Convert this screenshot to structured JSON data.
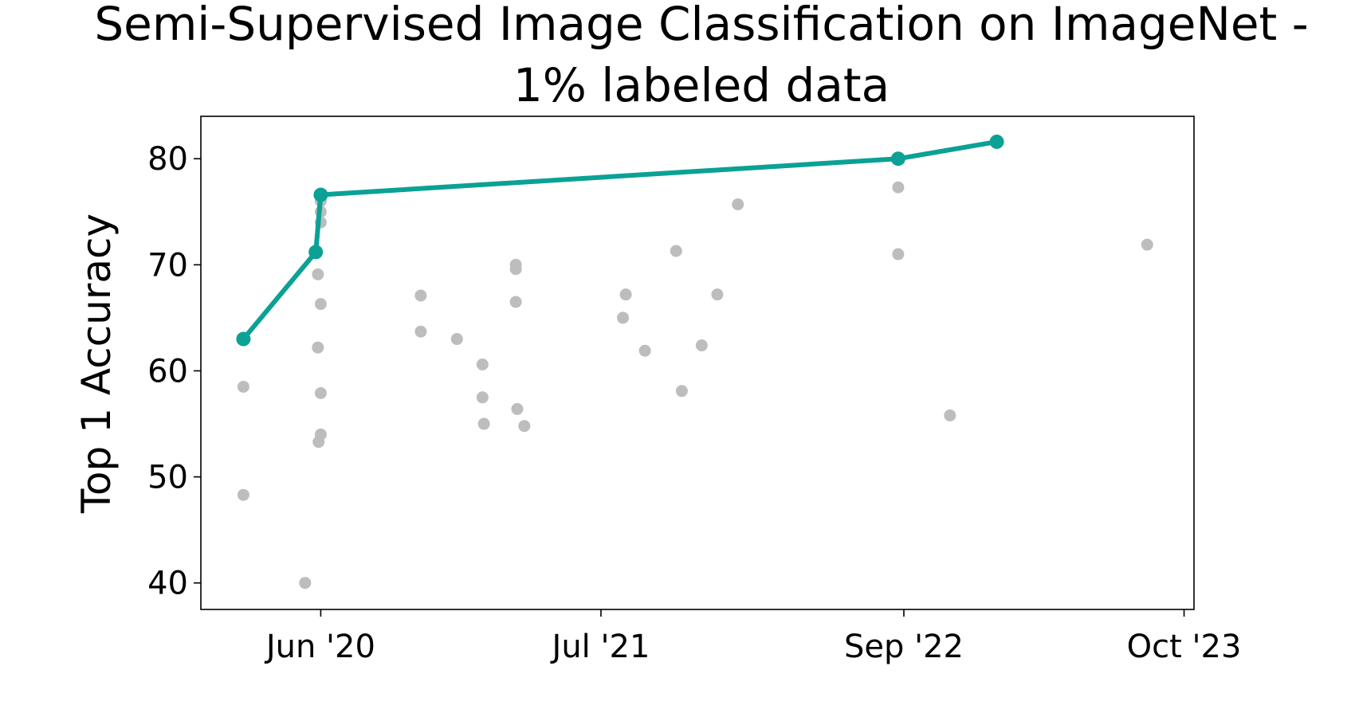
{
  "chart_data": {
    "type": "scatter",
    "title_lines": [
      "Semi-Supervised Image Classification on ImageNet -",
      "1% labeled data"
    ],
    "xlabel": "",
    "ylabel": "Top 1 Accuracy",
    "x_tick_labels": [
      "Jun '20",
      "Jul '21",
      "Sep '22",
      "Oct '23"
    ],
    "x_tick_dates": [
      "2020-06-01",
      "2021-07-01",
      "2022-09-01",
      "2023-10-01"
    ],
    "xlim": [
      "2019-12-15",
      "2023-10-15"
    ],
    "ylim": [
      37.5,
      84
    ],
    "y_ticks": [
      40,
      50,
      60,
      70,
      80
    ],
    "grid": false,
    "legend": "none",
    "colors": {
      "sota": "#0ba195",
      "other": "#bdbdbd"
    },
    "sota_series": {
      "points": [
        {
          "date": "2020-02-13",
          "value": 63.0
        },
        {
          "date": "2020-05-25",
          "value": 71.2
        },
        {
          "date": "2020-06-01",
          "value": 76.6
        },
        {
          "date": "2022-08-24",
          "value": 80.0
        },
        {
          "date": "2023-01-10",
          "value": 81.6
        }
      ]
    },
    "other_points": [
      {
        "date": "2020-02-13",
        "value": 58.5
      },
      {
        "date": "2020-02-13",
        "value": 48.3
      },
      {
        "date": "2020-05-10",
        "value": 40.0
      },
      {
        "date": "2020-05-28",
        "value": 69.1
      },
      {
        "date": "2020-06-01",
        "value": 66.3
      },
      {
        "date": "2020-05-28",
        "value": 62.2
      },
      {
        "date": "2020-06-01",
        "value": 57.9
      },
      {
        "date": "2020-06-01",
        "value": 54.0
      },
      {
        "date": "2020-05-29",
        "value": 53.3
      },
      {
        "date": "2020-06-01",
        "value": 74.0
      },
      {
        "date": "2020-06-01",
        "value": 75.0
      },
      {
        "date": "2020-06-01",
        "value": 76.0
      },
      {
        "date": "2020-10-20",
        "value": 67.1
      },
      {
        "date": "2020-10-20",
        "value": 63.7
      },
      {
        "date": "2020-12-10",
        "value": 63.0
      },
      {
        "date": "2021-01-15",
        "value": 60.6
      },
      {
        "date": "2021-01-15",
        "value": 57.5
      },
      {
        "date": "2021-01-17",
        "value": 55.0
      },
      {
        "date": "2021-03-03",
        "value": 70.0
      },
      {
        "date": "2021-03-03",
        "value": 69.6
      },
      {
        "date": "2021-03-03",
        "value": 66.5
      },
      {
        "date": "2021-03-05",
        "value": 56.4
      },
      {
        "date": "2021-03-15",
        "value": 54.8
      },
      {
        "date": "2021-08-01",
        "value": 65.0
      },
      {
        "date": "2021-08-05",
        "value": 67.2
      },
      {
        "date": "2021-09-01",
        "value": 61.9
      },
      {
        "date": "2021-10-15",
        "value": 71.3
      },
      {
        "date": "2021-10-23",
        "value": 58.1
      },
      {
        "date": "2021-11-20",
        "value": 62.4
      },
      {
        "date": "2021-12-12",
        "value": 67.2
      },
      {
        "date": "2022-01-10",
        "value": 75.7
      },
      {
        "date": "2022-08-24",
        "value": 77.3
      },
      {
        "date": "2022-08-24",
        "value": 71.0
      },
      {
        "date": "2022-11-05",
        "value": 55.8
      },
      {
        "date": "2023-08-10",
        "value": 71.9
      }
    ]
  }
}
